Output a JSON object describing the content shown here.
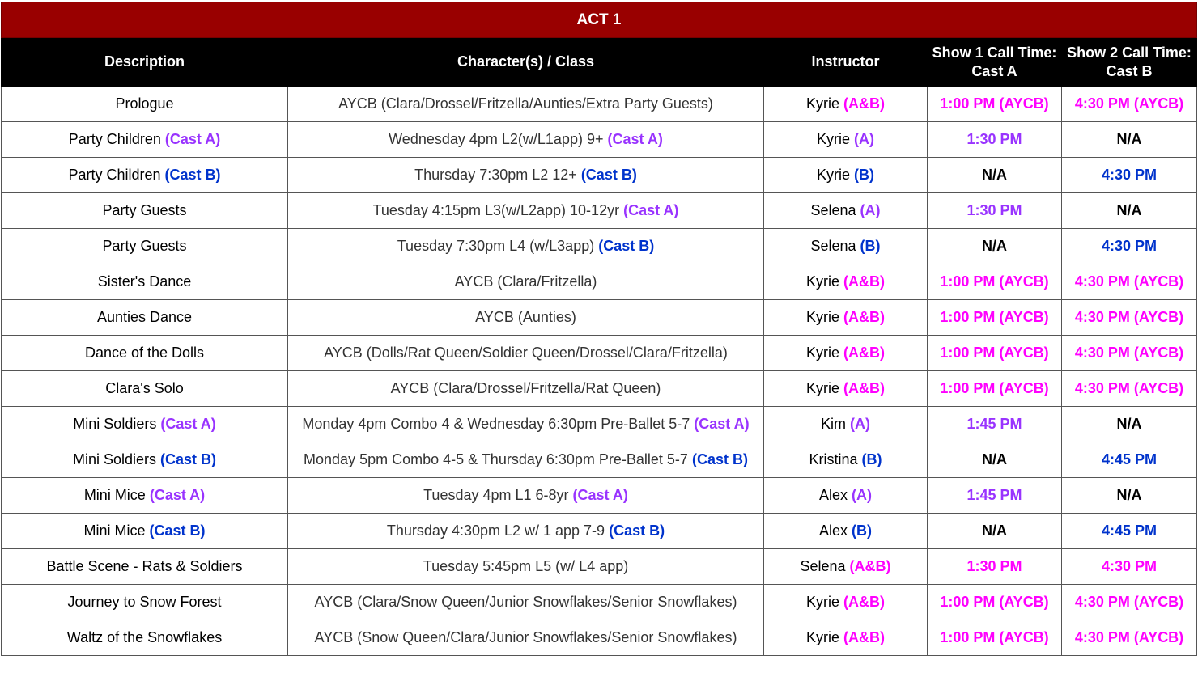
{
  "table": {
    "title": "ACT 1",
    "headers": [
      "Description",
      "Character(s) / Class",
      "Instructor",
      "Show 1 Call Time: Cast A",
      "Show 2 Call Time: Cast B"
    ],
    "rows": [
      [
        [
          {
            "text": "Prologue"
          }
        ],
        [
          {
            "text": "AYCB (Clara/Drossel/Fritzella/Aunties/Extra Party Guests)"
          }
        ],
        [
          {
            "text": "Kyrie"
          },
          {
            "text": "(A&B)",
            "color": "#ff00ff"
          }
        ],
        [
          {
            "text": "1:00 PM (AYCB)",
            "color": "#ff00ff"
          }
        ],
        [
          {
            "text": "4:30 PM (AYCB)",
            "color": "#ff00ff"
          }
        ]
      ],
      [
        [
          {
            "text": "Party Children"
          },
          {
            "text": "(Cast A)",
            "color": "#9933ff"
          }
        ],
        [
          {
            "text": "Wednesday 4pm L2(w/L1app) 9+"
          },
          {
            "text": "(Cast A)",
            "color": "#9933ff"
          }
        ],
        [
          {
            "text": "Kyrie"
          },
          {
            "text": "(A)",
            "color": "#9933ff"
          }
        ],
        [
          {
            "text": "1:30 PM",
            "color": "#9933ff"
          }
        ],
        [
          {
            "text": "N/A"
          }
        ]
      ],
      [
        [
          {
            "text": "Party Children"
          },
          {
            "text": "(Cast B)",
            "color": "#0033cc"
          }
        ],
        [
          {
            "text": "Thursday 7:30pm L2 12+"
          },
          {
            "text": "(Cast B)",
            "color": "#0033cc"
          }
        ],
        [
          {
            "text": "Kyrie"
          },
          {
            "text": "(B)",
            "color": "#0033cc"
          }
        ],
        [
          {
            "text": "N/A"
          }
        ],
        [
          {
            "text": "4:30 PM",
            "color": "#0033cc"
          }
        ]
      ],
      [
        [
          {
            "text": "Party Guests"
          }
        ],
        [
          {
            "text": "Tuesday 4:15pm L3(w/L2app) 10-12yr"
          },
          {
            "text": "(Cast A)",
            "color": "#9933ff"
          }
        ],
        [
          {
            "text": "Selena"
          },
          {
            "text": "(A)",
            "color": "#9933ff"
          }
        ],
        [
          {
            "text": "1:30 PM",
            "color": "#9933ff"
          }
        ],
        [
          {
            "text": "N/A"
          }
        ]
      ],
      [
        [
          {
            "text": "Party Guests"
          }
        ],
        [
          {
            "text": "Tuesday 7:30pm L4 (w/L3app)"
          },
          {
            "text": "(Cast B)",
            "color": "#0033cc"
          }
        ],
        [
          {
            "text": "Selena"
          },
          {
            "text": "(B)",
            "color": "#0033cc"
          }
        ],
        [
          {
            "text": "N/A"
          }
        ],
        [
          {
            "text": "4:30 PM",
            "color": "#0033cc"
          }
        ]
      ],
      [
        [
          {
            "text": "Sister's Dance"
          }
        ],
        [
          {
            "text": "AYCB (Clara/Fritzella)"
          }
        ],
        [
          {
            "text": "Kyrie"
          },
          {
            "text": "(A&B)",
            "color": "#ff00ff"
          }
        ],
        [
          {
            "text": "1:00 PM (AYCB)",
            "color": "#ff00ff"
          }
        ],
        [
          {
            "text": "4:30 PM (AYCB)",
            "color": "#ff00ff"
          }
        ]
      ],
      [
        [
          {
            "text": "Aunties Dance"
          }
        ],
        [
          {
            "text": "AYCB (Aunties)"
          }
        ],
        [
          {
            "text": "Kyrie"
          },
          {
            "text": "(A&B)",
            "color": "#ff00ff"
          }
        ],
        [
          {
            "text": "1:00 PM (AYCB)",
            "color": "#ff00ff"
          }
        ],
        [
          {
            "text": "4:30 PM (AYCB)",
            "color": "#ff00ff"
          }
        ]
      ],
      [
        [
          {
            "text": "Dance of the Dolls"
          }
        ],
        [
          {
            "text": "AYCB (Dolls/Rat Queen/Soldier Queen/Drossel/Clara/Fritzella)"
          }
        ],
        [
          {
            "text": "Kyrie"
          },
          {
            "text": "(A&B)",
            "color": "#ff00ff"
          }
        ],
        [
          {
            "text": "1:00 PM (AYCB)",
            "color": "#ff00ff"
          }
        ],
        [
          {
            "text": "4:30 PM (AYCB)",
            "color": "#ff00ff"
          }
        ]
      ],
      [
        [
          {
            "text": "Clara's Solo"
          }
        ],
        [
          {
            "text": "AYCB (Clara/Drossel/Fritzella/Rat Queen)"
          }
        ],
        [
          {
            "text": "Kyrie"
          },
          {
            "text": "(A&B)",
            "color": "#ff00ff"
          }
        ],
        [
          {
            "text": "1:00 PM (AYCB)",
            "color": "#ff00ff"
          }
        ],
        [
          {
            "text": "4:30 PM (AYCB)",
            "color": "#ff00ff"
          }
        ]
      ],
      [
        [
          {
            "text": "Mini Soldiers"
          },
          {
            "text": "(Cast A)",
            "color": "#9933ff"
          }
        ],
        [
          {
            "text": "Monday 4pm Combo 4 & Wednesday 6:30pm Pre-Ballet 5-7"
          },
          {
            "text": "(Cast A)",
            "color": "#9933ff"
          }
        ],
        [
          {
            "text": "Kim"
          },
          {
            "text": "(A)",
            "color": "#9933ff"
          }
        ],
        [
          {
            "text": "1:45 PM",
            "color": "#9933ff"
          }
        ],
        [
          {
            "text": "N/A"
          }
        ]
      ],
      [
        [
          {
            "text": "Mini Soldiers"
          },
          {
            "text": "(Cast B)",
            "color": "#0033cc"
          }
        ],
        [
          {
            "text": "Monday 5pm Combo 4-5 & Thursday 6:30pm Pre-Ballet 5-7"
          },
          {
            "text": "(Cast B)",
            "color": "#0033cc"
          }
        ],
        [
          {
            "text": "Kristina"
          },
          {
            "text": "(B)",
            "color": "#0033cc"
          }
        ],
        [
          {
            "text": "N/A"
          }
        ],
        [
          {
            "text": "4:45 PM",
            "color": "#0033cc"
          }
        ]
      ],
      [
        [
          {
            "text": "Mini Mice"
          },
          {
            "text": "(Cast A)",
            "color": "#9933ff"
          }
        ],
        [
          {
            "text": "Tuesday 4pm L1 6-8yr"
          },
          {
            "text": "(Cast A)",
            "color": "#9933ff"
          }
        ],
        [
          {
            "text": "Alex"
          },
          {
            "text": "(A)",
            "color": "#9933ff"
          }
        ],
        [
          {
            "text": "1:45 PM",
            "color": "#9933ff"
          }
        ],
        [
          {
            "text": "N/A"
          }
        ]
      ],
      [
        [
          {
            "text": "Mini Mice"
          },
          {
            "text": "(Cast B)",
            "color": "#0033cc"
          }
        ],
        [
          {
            "text": "Thursday 4:30pm L2 w/ 1 app 7-9"
          },
          {
            "text": "(Cast B)",
            "color": "#0033cc"
          }
        ],
        [
          {
            "text": "Alex"
          },
          {
            "text": "(B)",
            "color": "#0033cc"
          }
        ],
        [
          {
            "text": "N/A"
          }
        ],
        [
          {
            "text": "4:45 PM",
            "color": "#0033cc"
          }
        ]
      ],
      [
        [
          {
            "text": "Battle Scene - Rats & Soldiers"
          }
        ],
        [
          {
            "text": "Tuesday 5:45pm L5 (w/ L4 app)"
          }
        ],
        [
          {
            "text": "Selena"
          },
          {
            "text": "(A&B)",
            "color": "#ff00ff"
          }
        ],
        [
          {
            "text": "1:30 PM",
            "color": "#ff00ff"
          }
        ],
        [
          {
            "text": "4:30 PM",
            "color": "#ff00ff"
          }
        ]
      ],
      [
        [
          {
            "text": "Journey to Snow Forest"
          }
        ],
        [
          {
            "text": "AYCB (Clara/Snow Queen/Junior Snowflakes/Senior Snowflakes)"
          }
        ],
        [
          {
            "text": "Kyrie"
          },
          {
            "text": "(A&B)",
            "color": "#ff00ff"
          }
        ],
        [
          {
            "text": "1:00 PM (AYCB)",
            "color": "#ff00ff"
          }
        ],
        [
          {
            "text": "4:30 PM (AYCB)",
            "color": "#ff00ff"
          }
        ]
      ],
      [
        [
          {
            "text": "Waltz of the Snowflakes"
          }
        ],
        [
          {
            "text": "AYCB (Snow Queen/Clara/Junior Snowflakes/Senior Snowflakes)"
          }
        ],
        [
          {
            "text": "Kyrie"
          },
          {
            "text": "(A&B)",
            "color": "#ff00ff"
          }
        ],
        [
          {
            "text": "1:00 PM (AYCB)",
            "color": "#ff00ff"
          }
        ],
        [
          {
            "text": "4:30 PM (AYCB)",
            "color": "#ff00ff"
          }
        ]
      ]
    ]
  }
}
